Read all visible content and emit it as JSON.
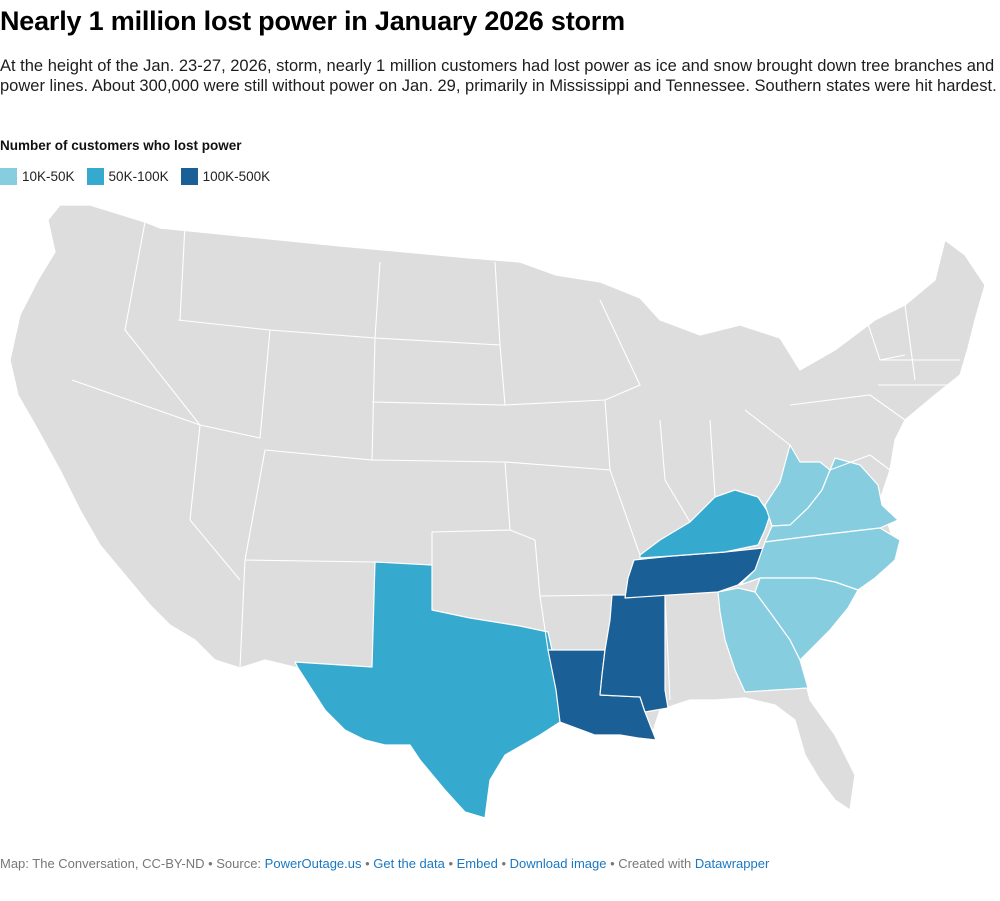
{
  "header": {
    "title": "Nearly 1 million lost power in January 2026 storm",
    "subtitle": "At the height of the Jan. 23-27, 2026, storm, nearly 1 million customers had lost power as ice and snow brought down tree branches and power lines. About 300,000 were still without power on Jan. 29, primarily in Mississippi and Tennessee. Southern states were hit hardest."
  },
  "legend": {
    "title": "Number of customers who lost power",
    "items": [
      {
        "label": "10K-50K",
        "color": "#86cde0"
      },
      {
        "label": "50K-100K",
        "color": "#36a9cf"
      },
      {
        "label": "100K-500K",
        "color": "#1a5f96"
      }
    ]
  },
  "map": {
    "default_color": "#dddddd",
    "highlighted_states": {
      "100K-500K": [
        "Tennessee",
        "Mississippi",
        "Louisiana"
      ],
      "50K-100K": [
        "Texas",
        "Kentucky"
      ],
      "10K-50K": [
        "West Virginia",
        "Virginia",
        "North Carolina",
        "South Carolina",
        "Georgia"
      ]
    }
  },
  "footer": {
    "prefix": "Map: The Conversation, CC-BY-ND • Source: ",
    "source_link": "PowerOutage.us",
    "sep1": " • ",
    "get_data": "Get the data",
    "sep2": " • ",
    "embed": "Embed",
    "sep3": "  • ",
    "download": "Download image",
    "sep4": " • Created with ",
    "datawrapper": "Datawrapper"
  }
}
